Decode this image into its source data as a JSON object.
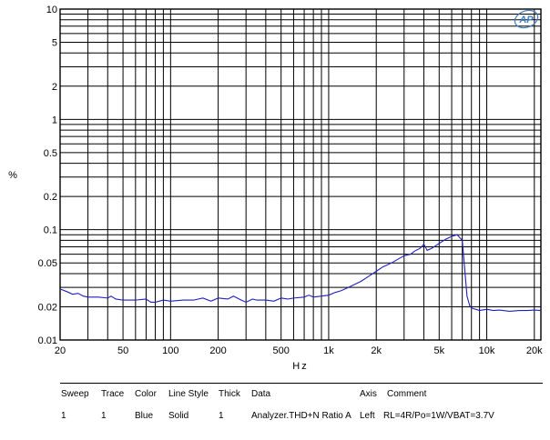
{
  "chart_data": {
    "type": "line",
    "xscale": "log",
    "yscale": "log",
    "xlim": [
      20,
      22000
    ],
    "ylim": [
      0.01,
      10
    ],
    "xlabel": "Hz",
    "ylabel": "%",
    "grid": true,
    "x_ticks": [
      {
        "value": 20,
        "label": "20"
      },
      {
        "value": 50,
        "label": "50"
      },
      {
        "value": 100,
        "label": "100"
      },
      {
        "value": 200,
        "label": "200"
      },
      {
        "value": 500,
        "label": "500"
      },
      {
        "value": 1000,
        "label": "1k"
      },
      {
        "value": 2000,
        "label": "2k"
      },
      {
        "value": 5000,
        "label": "5k"
      },
      {
        "value": 10000,
        "label": "10k"
      },
      {
        "value": 20000,
        "label": "20k"
      }
    ],
    "y_ticks": [
      {
        "value": 10,
        "label": "10"
      },
      {
        "value": 5,
        "label": "5"
      },
      {
        "value": 2,
        "label": "2"
      },
      {
        "value": 1,
        "label": "1"
      },
      {
        "value": 0.5,
        "label": "0.5"
      },
      {
        "value": 0.2,
        "label": "0.2"
      },
      {
        "value": 0.1,
        "label": "0.1"
      },
      {
        "value": 0.05,
        "label": "0.05"
      },
      {
        "value": 0.02,
        "label": "0.02"
      },
      {
        "value": 0.01,
        "label": "0.01"
      }
    ],
    "series": [
      {
        "color": "#1f1fbf",
        "x": [
          20,
          22,
          24,
          26,
          28,
          30,
          35,
          40,
          42,
          45,
          50,
          60,
          70,
          75,
          80,
          90,
          100,
          120,
          140,
          160,
          180,
          200,
          230,
          250,
          280,
          300,
          330,
          350,
          400,
          450,
          500,
          550,
          600,
          700,
          750,
          800,
          900,
          1000,
          1100,
          1200,
          1400,
          1600,
          1800,
          2000,
          2200,
          2500,
          2800,
          3000,
          3300,
          3500,
          3800,
          4000,
          4200,
          4500,
          5000,
          5500,
          6000,
          6500,
          7000,
          7200,
          7500,
          7800,
          8000,
          9000,
          10000,
          11000,
          12000,
          14000,
          16000,
          18000,
          20000,
          22000
        ],
        "y": [
          0.029,
          0.0275,
          0.026,
          0.0265,
          0.025,
          0.0245,
          0.0245,
          0.024,
          0.025,
          0.0235,
          0.023,
          0.023,
          0.0235,
          0.022,
          0.022,
          0.023,
          0.0225,
          0.023,
          0.023,
          0.024,
          0.0225,
          0.024,
          0.0235,
          0.025,
          0.023,
          0.022,
          0.0235,
          0.023,
          0.023,
          0.0225,
          0.024,
          0.0235,
          0.024,
          0.0245,
          0.0255,
          0.0245,
          0.025,
          0.0255,
          0.027,
          0.028,
          0.031,
          0.034,
          0.038,
          0.042,
          0.046,
          0.05,
          0.055,
          0.058,
          0.06,
          0.064,
          0.068,
          0.074,
          0.065,
          0.068,
          0.075,
          0.082,
          0.087,
          0.09,
          0.08,
          0.05,
          0.025,
          0.0205,
          0.0195,
          0.0185,
          0.019,
          0.0185,
          0.0187,
          0.0182,
          0.0185,
          0.0185,
          0.0187,
          0.0185
        ]
      }
    ]
  },
  "legend": {
    "headers": {
      "sweep": "Sweep",
      "trace": "Trace",
      "color": "Color",
      "line_style": "Line Style",
      "thick": "Thick",
      "data": "Data",
      "axis": "Axis",
      "comment": "Comment"
    },
    "row": {
      "sweep": "1",
      "trace": "1",
      "color": "Blue",
      "line_style": "Solid",
      "thick": "1",
      "data": "Analyzer.THD+N Ratio A",
      "axis": "Left",
      "comment": "RL=4R/Po=1W/VBAT=3.7V"
    }
  },
  "logo": {
    "text": "AP",
    "color": "#3b7dc4"
  }
}
